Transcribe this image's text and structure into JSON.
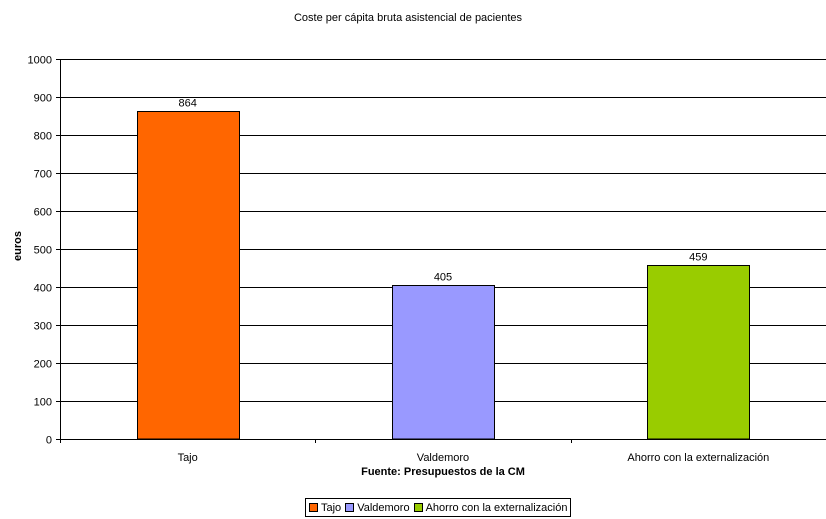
{
  "chart_data": {
    "type": "bar",
    "title": "Coste per cápita bruta asistencial de pacientes",
    "xlabel": "Fuente: Presupuestos de la CM",
    "ylabel": "euros",
    "categories": [
      "Tajo",
      "Valdemoro",
      "Ahorro con la externalización"
    ],
    "values": [
      864,
      405,
      459
    ],
    "data_labels": [
      "864",
      "405",
      "459"
    ],
    "colors": [
      "#FF6600",
      "#9999FF",
      "#99CC00"
    ],
    "ylim": [
      0,
      1000
    ],
    "yticks": [
      0,
      100,
      200,
      300,
      400,
      500,
      600,
      700,
      800,
      900,
      1000
    ],
    "grid": true,
    "legend": {
      "placement": "bottom",
      "entries": [
        "Tajo",
        "Valdemoro",
        "Ahorro con la externalización"
      ]
    }
  }
}
